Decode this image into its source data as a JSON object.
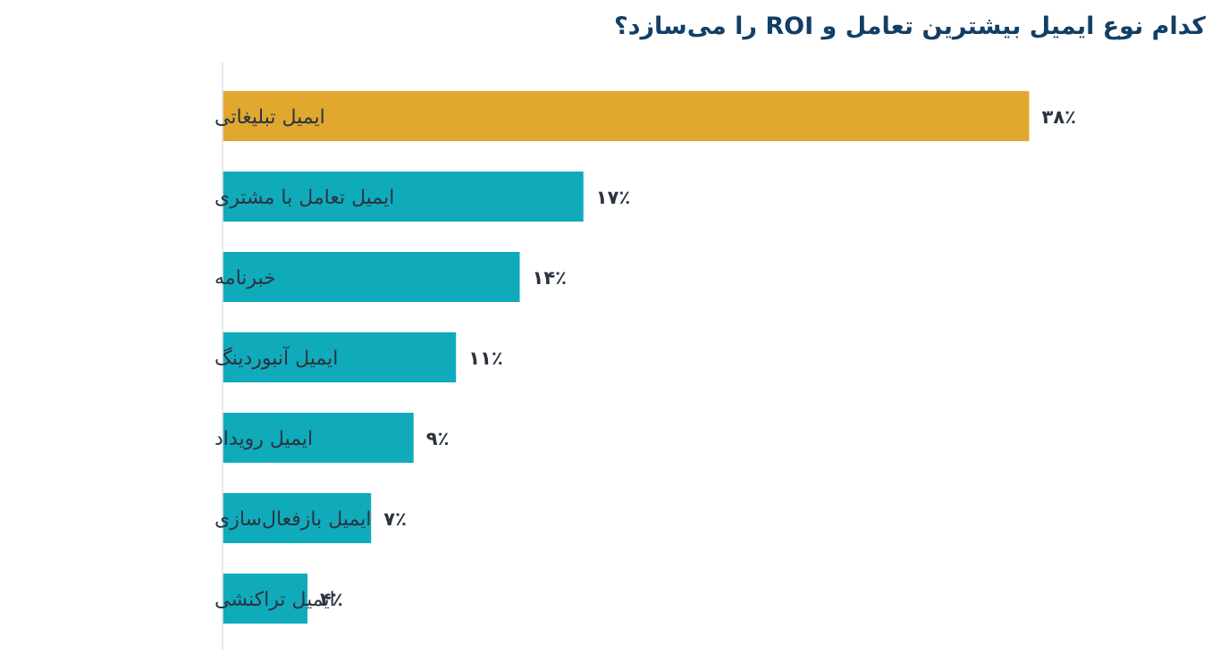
{
  "chart_data": {
    "type": "bar",
    "orientation": "horizontal",
    "title": "کدام نوع ایمیل بیشترین تعامل و ROI را می‌سازد؟",
    "categories": [
      "ایمیل تبلیغاتی",
      "ایمیل تعامل با مشتری",
      "خبرنامه",
      "ایمیل آنبوردینگ",
      "ایمیل رویداد",
      "ایمیل بازفعال‌سازی",
      "ایمیل تراکنشی"
    ],
    "values": [
      38,
      17,
      14,
      11,
      9,
      7,
      4
    ],
    "value_labels": [
      "۳۸٪",
      "۱۷٪",
      "۱۴٪",
      "۱۱٪",
      "۹٪",
      "۷٪",
      "۴٪"
    ],
    "xlim": [
      0,
      40
    ],
    "grid": false,
    "legend": "none",
    "colors": {
      "highlight": "#e0a82e",
      "default": "#10abbb",
      "axis": "#e2e4e7",
      "title": "#123f66",
      "text": "#2b3340"
    }
  }
}
